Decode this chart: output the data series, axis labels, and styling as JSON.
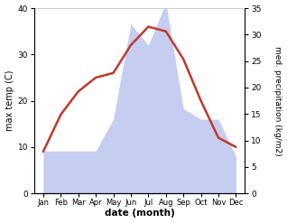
{
  "months": [
    "Jan",
    "Feb",
    "Mar",
    "Apr",
    "May",
    "Jun",
    "Jul",
    "Aug",
    "Sep",
    "Oct",
    "Nov",
    "Dec"
  ],
  "temperature": [
    9,
    17,
    22,
    25,
    26,
    32,
    36,
    35,
    29,
    20,
    12,
    10
  ],
  "precipitation": [
    8,
    8,
    8,
    8,
    14,
    32,
    28,
    36,
    16,
    14,
    14,
    7
  ],
  "temp_ylim": [
    0,
    40
  ],
  "precip_ylim": [
    0,
    35
  ],
  "temp_yticks": [
    0,
    10,
    20,
    30,
    40
  ],
  "precip_yticks": [
    0,
    5,
    10,
    15,
    20,
    25,
    30,
    35
  ],
  "temp_color": "#c0392b",
  "precip_color": "#c5cdf0",
  "left_ylabel": "max temp (C)",
  "right_ylabel": "med. precipitation (kg/m2)",
  "xlabel": "date (month)",
  "background_color": "#ffffff",
  "temp_linewidth": 1.8,
  "fig_width": 3.18,
  "fig_height": 2.47,
  "dpi": 100
}
